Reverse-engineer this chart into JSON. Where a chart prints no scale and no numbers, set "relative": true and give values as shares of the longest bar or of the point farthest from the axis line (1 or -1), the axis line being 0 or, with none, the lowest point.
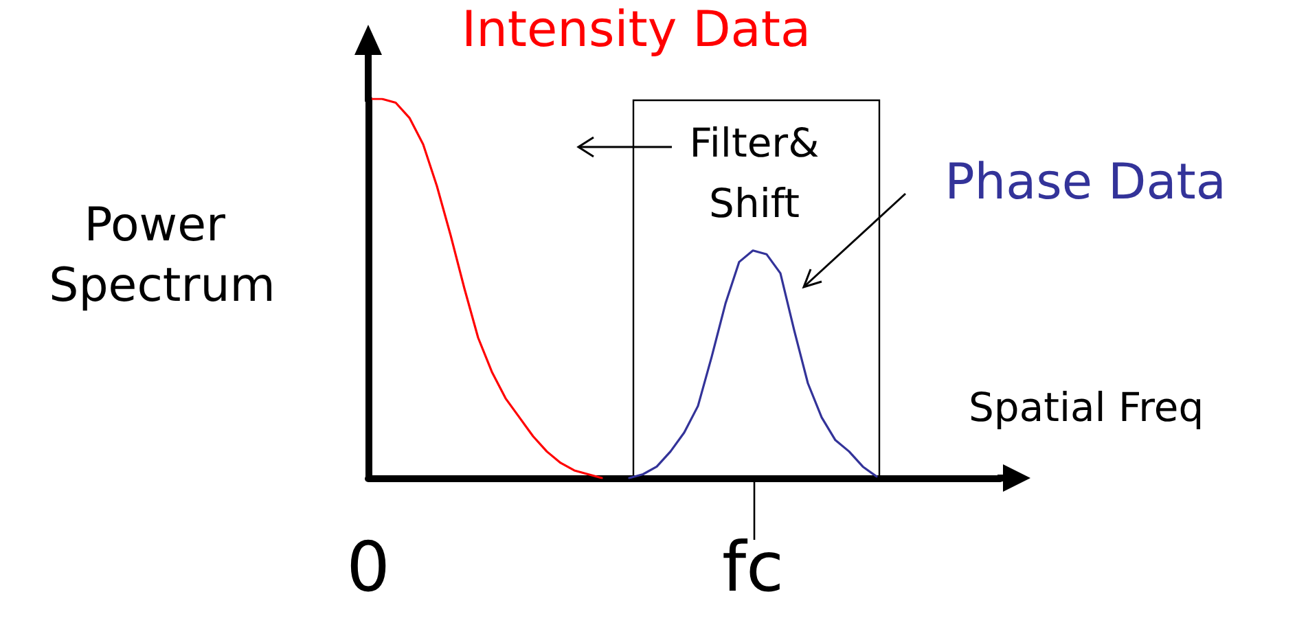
{
  "chart_data": {
    "type": "line",
    "relative": true,
    "xlabel": "Spatial Freq",
    "ylabel": "Power Spectrum",
    "annotations": [
      "Filter&\nShift"
    ],
    "marker": "none",
    "line_style": "solid",
    "grid": false,
    "legend": false,
    "tick_labels": "x",
    "categories": [
      "0",
      null,
      null,
      null,
      null,
      null,
      null,
      null,
      null,
      null,
      null,
      null,
      null,
      null,
      null,
      null,
      null,
      null,
      null,
      null,
      null,
      null,
      null,
      null,
      null,
      null,
      null,
      null,
      "fc",
      null,
      null,
      null,
      null,
      null,
      null,
      null,
      null,
      null,
      null,
      null,
      null,
      null,
      null,
      null,
      null,
      null,
      null
    ],
    "series": [
      {
        "name": "Intensity Data",
        "color": "#ff0000",
        "values": [
          1,
          1,
          0.99,
          0.95,
          0.88,
          0.77,
          0.64,
          0.5,
          0.37,
          0.28,
          0.21,
          0.16,
          0.11,
          0.07,
          0.04,
          0.02,
          0.01,
          0,
          null,
          null,
          null,
          null,
          null,
          null,
          null,
          null,
          null,
          null,
          null,
          null,
          null,
          null,
          null,
          null,
          null,
          null,
          null,
          null,
          null,
          null,
          null,
          null,
          null,
          null,
          null,
          null,
          null
        ]
      },
      {
        "name": "Phase Data",
        "color": "#333399",
        "values": [
          null,
          null,
          null,
          null,
          null,
          null,
          null,
          null,
          null,
          null,
          null,
          null,
          null,
          null,
          null,
          null,
          null,
          null,
          null,
          0,
          0.01,
          0.03,
          0.07,
          0.12,
          0.19,
          0.32,
          0.46,
          0.57,
          0.6,
          0.59,
          0.54,
          0.39,
          0.25,
          0.16,
          0.1,
          0.07,
          0.03,
          0.004,
          null,
          null,
          null,
          null,
          null,
          null,
          null,
          null,
          null
        ]
      }
    ]
  }
}
